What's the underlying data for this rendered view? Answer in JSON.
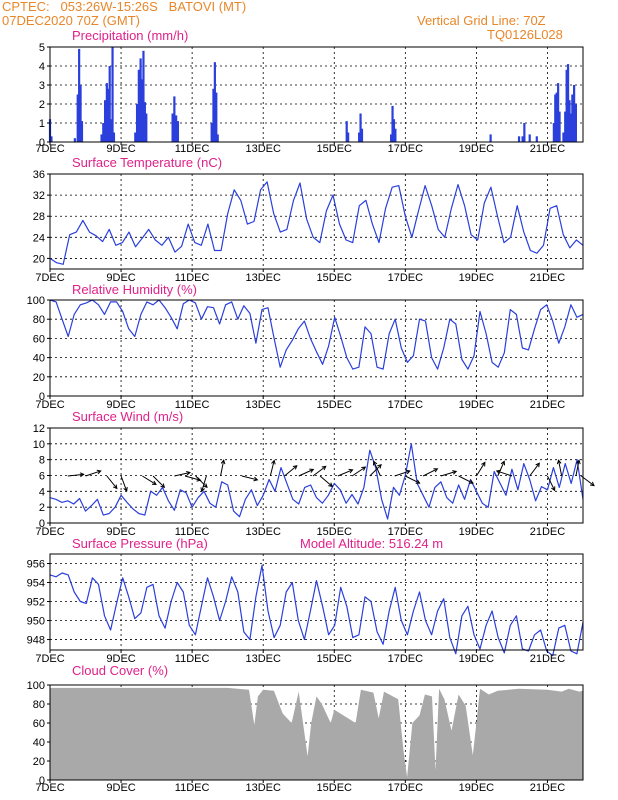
{
  "header": {
    "line1_left": "CPTEC:   053:26W-15:26S   BATOVI (MT)",
    "line2_left": "07DEC2020 70Z (GMT)",
    "line1_right": "Vertical Grid Line: 70Z",
    "line2_right": "TQ0126L028"
  },
  "colors": {
    "header": "#e8872a",
    "title": "#e0218a",
    "line": "#2a3fdc",
    "cloud": "#a9a9a9",
    "arrow": "#000000"
  },
  "x_axis": {
    "ticks": [
      "7DEC",
      "9DEC",
      "11DEC",
      "13DEC",
      "15DEC",
      "17DEC",
      "19DEC",
      "21DEC"
    ],
    "range_days": [
      0,
      15
    ],
    "tick_days": [
      0,
      2,
      4,
      6,
      8,
      10,
      12,
      14
    ]
  },
  "chart_data": [
    {
      "id": "precip",
      "type": "bar",
      "title": "Precipitation (mm/h)",
      "ylim": [
        0,
        5
      ],
      "yticks": [
        0,
        1,
        2,
        3,
        4,
        5
      ],
      "series": [
        {
          "day": 0.0,
          "value": 1.2
        },
        {
          "day": 0.04,
          "value": 0.3
        },
        {
          "day": 0.7,
          "value": 0.2
        },
        {
          "day": 0.78,
          "value": 2.5
        },
        {
          "day": 0.82,
          "value": 4.9
        },
        {
          "day": 0.86,
          "value": 3.0
        },
        {
          "day": 0.9,
          "value": 1.1
        },
        {
          "day": 1.45,
          "value": 0.4
        },
        {
          "day": 1.5,
          "value": 1.0
        },
        {
          "day": 1.55,
          "value": 2.2
        },
        {
          "day": 1.6,
          "value": 3.1
        },
        {
          "day": 1.64,
          "value": 2.8
        },
        {
          "day": 1.68,
          "value": 4.0
        },
        {
          "day": 1.72,
          "value": 1.2
        },
        {
          "day": 1.76,
          "value": 5.0
        },
        {
          "day": 1.8,
          "value": 0.5
        },
        {
          "day": 2.4,
          "value": 0.5
        },
        {
          "day": 2.45,
          "value": 2.0
        },
        {
          "day": 2.5,
          "value": 3.8
        },
        {
          "day": 2.55,
          "value": 4.4
        },
        {
          "day": 2.6,
          "value": 3.3
        },
        {
          "day": 2.63,
          "value": 4.8
        },
        {
          "day": 2.67,
          "value": 2.1
        },
        {
          "day": 2.71,
          "value": 1.5
        },
        {
          "day": 3.45,
          "value": 1.5
        },
        {
          "day": 3.5,
          "value": 2.4
        },
        {
          "day": 3.55,
          "value": 1.4
        },
        {
          "day": 3.6,
          "value": 1.1
        },
        {
          "day": 4.55,
          "value": 1.0
        },
        {
          "day": 4.6,
          "value": 2.8
        },
        {
          "day": 4.64,
          "value": 4.2
        },
        {
          "day": 4.68,
          "value": 2.6
        },
        {
          "day": 4.72,
          "value": 0.4
        },
        {
          "day": 8.35,
          "value": 1.1
        },
        {
          "day": 8.39,
          "value": 0.5
        },
        {
          "day": 8.7,
          "value": 0.5
        },
        {
          "day": 8.74,
          "value": 1.5
        },
        {
          "day": 8.78,
          "value": 0.7
        },
        {
          "day": 9.6,
          "value": 0.4
        },
        {
          "day": 9.64,
          "value": 1.9
        },
        {
          "day": 9.68,
          "value": 1.2
        },
        {
          "day": 9.72,
          "value": 0.7
        },
        {
          "day": 12.4,
          "value": 0.4
        },
        {
          "day": 13.2,
          "value": 0.3
        },
        {
          "day": 13.3,
          "value": 0.3
        },
        {
          "day": 13.35,
          "value": 1.0
        },
        {
          "day": 13.5,
          "value": 0.4
        },
        {
          "day": 13.7,
          "value": 0.3
        },
        {
          "day": 14.18,
          "value": 1.0
        },
        {
          "day": 14.22,
          "value": 2.5
        },
        {
          "day": 14.26,
          "value": 2.6
        },
        {
          "day": 14.3,
          "value": 3.1
        },
        {
          "day": 14.34,
          "value": 1.6
        },
        {
          "day": 14.45,
          "value": 0.5
        },
        {
          "day": 14.5,
          "value": 1.6
        },
        {
          "day": 14.54,
          "value": 3.8
        },
        {
          "day": 14.58,
          "value": 4.1
        },
        {
          "day": 14.62,
          "value": 2.2
        },
        {
          "day": 14.66,
          "value": 1.5
        },
        {
          "day": 14.7,
          "value": 2.5
        },
        {
          "day": 14.75,
          "value": 3.0
        },
        {
          "day": 14.8,
          "value": 2.0
        }
      ]
    },
    {
      "id": "temp",
      "type": "line",
      "title": "Surface Temperature (nC)",
      "ylim": [
        18,
        36
      ],
      "yticks": [
        20,
        24,
        28,
        32,
        36
      ],
      "base": [
        20.0,
        19.2,
        18.9,
        24.5,
        25.0,
        27.2,
        25.0,
        24.3,
        23.2,
        25.5,
        22.5,
        23.0,
        25.0,
        22.2,
        23.8,
        25.5,
        23.5,
        22.5,
        24.0,
        21.2,
        22.3,
        26.5,
        23.0,
        22.5,
        26.5,
        21.5,
        21.5,
        28.5,
        33.0,
        31.0,
        26.5,
        27.0,
        33.0,
        34.5,
        28.5,
        25.0,
        25.5,
        31.0,
        34.3,
        27.5,
        24.0,
        23.0,
        29.0,
        32.0,
        26.5,
        23.5,
        23.0,
        30.0,
        31.0,
        26.5,
        23.0,
        29.5,
        33.5,
        33.8,
        28.0,
        24.0,
        29.0,
        33.8,
        30.0,
        25.5,
        24.0,
        29.5,
        34.0,
        30.0,
        24.5,
        23.5,
        30.5,
        33.5,
        28.0,
        23.0,
        24.0,
        30.0,
        25.0,
        21.5,
        21.0,
        22.5,
        29.5,
        30.0,
        24.5,
        22.0,
        23.5,
        22.5
      ],
      "label_points": []
    },
    {
      "id": "rh",
      "type": "line",
      "title": "Relative Humidity (%)",
      "ylim": [
        0,
        100
      ],
      "yticks": [
        0,
        20,
        40,
        60,
        80,
        100
      ],
      "base": [
        100,
        98,
        80,
        62,
        85,
        95,
        97,
        100,
        95,
        85,
        98,
        98,
        88,
        70,
        62,
        85,
        98,
        95,
        100,
        92,
        82,
        70,
        96,
        100,
        97,
        80,
        93,
        92,
        75,
        95,
        98,
        80,
        94,
        86,
        55,
        90,
        92,
        60,
        30,
        48,
        58,
        70,
        78,
        60,
        46,
        33,
        52,
        82,
        62,
        40,
        28,
        30,
        72,
        65,
        30,
        28,
        65,
        80,
        50,
        35,
        42,
        80,
        78,
        40,
        28,
        50,
        80,
        75,
        38,
        28,
        42,
        88,
        65,
        35,
        30,
        45,
        90,
        85,
        50,
        48,
        70,
        90,
        95,
        78,
        55,
        72,
        95,
        82,
        85
      ]
    },
    {
      "id": "wind",
      "type": "line",
      "title": "Surface Wind (m/s)",
      "ylim": [
        0,
        12
      ],
      "yticks": [
        0,
        2,
        4,
        6,
        8,
        10,
        12
      ],
      "base": [
        3.2,
        3.0,
        2.6,
        2.8,
        2.4,
        3.1,
        1.5,
        2.2,
        3.0,
        1.0,
        1.2,
        2.0,
        3.5,
        2.6,
        1.8,
        1.2,
        1.0,
        4.0,
        3.5,
        4.5,
        2.8,
        1.6,
        4.2,
        3.8,
        2.0,
        3.2,
        4.0,
        2.5,
        2.0,
        5.2,
        4.8,
        1.5,
        0.8,
        3.0,
        4.2,
        2.2,
        3.5,
        5.5,
        4.0,
        7.0,
        5.0,
        3.0,
        2.4,
        4.5,
        4.8,
        3.2,
        2.5,
        3.5,
        5.0,
        4.2,
        2.5,
        3.6,
        2.4,
        4.5,
        9.2,
        7.0,
        3.0,
        0.5,
        4.5,
        3.5,
        6.0,
        10.0,
        5.0,
        3.5,
        2.0,
        4.5,
        5.2,
        3.2,
        2.5,
        4.8,
        3.0,
        5.5,
        4.0,
        2.5,
        2.0,
        6.5,
        5.0,
        3.5,
        6.8,
        4.2,
        7.5,
        5.5,
        2.8,
        4.6,
        4.2,
        7.0,
        4.5,
        7.5,
        5.0,
        8.0,
        3.0
      ],
      "arrows": [
        {
          "day": 0.5,
          "u": 1,
          "v": 0.1
        },
        {
          "day": 1.0,
          "u": 0.9,
          "v": 0.3
        },
        {
          "day": 1.6,
          "u": 0.4,
          "v": -0.5
        },
        {
          "day": 2.0,
          "u": 0.3,
          "v": -0.8
        },
        {
          "day": 2.6,
          "u": 0.8,
          "v": -0.5
        },
        {
          "day": 2.9,
          "u": 0.6,
          "v": -0.6
        },
        {
          "day": 3.5,
          "u": 0.9,
          "v": 0.2
        },
        {
          "day": 3.8,
          "u": 1.1,
          "v": -0.3
        },
        {
          "day": 4.1,
          "u": 0.9,
          "v": -0.9
        },
        {
          "day": 4.4,
          "u": -0.3,
          "v": -1.0
        },
        {
          "day": 4.8,
          "u": 0.2,
          "v": 1.0
        },
        {
          "day": 5.4,
          "u": 1.2,
          "v": -0.3
        },
        {
          "day": 6.2,
          "u": 0.2,
          "v": 0.8
        },
        {
          "day": 6.6,
          "u": 0.6,
          "v": 0.5
        },
        {
          "day": 7.0,
          "u": 1.1,
          "v": 0.5
        },
        {
          "day": 7.4,
          "u": 0.8,
          "v": 0.6
        },
        {
          "day": 7.6,
          "u": 0.7,
          "v": -0.6
        },
        {
          "day": 8.1,
          "u": 1.2,
          "v": 0.5
        },
        {
          "day": 8.5,
          "u": 1.2,
          "v": 0.8
        },
        {
          "day": 9.0,
          "u": 1.0,
          "v": 1.0
        },
        {
          "day": 9.3,
          "u": -0.6,
          "v": 1.3
        },
        {
          "day": 9.7,
          "u": 1.2,
          "v": 0.4
        },
        {
          "day": 10.0,
          "u": 1.0,
          "v": -0.5
        },
        {
          "day": 10.5,
          "u": 1.0,
          "v": 0.5
        },
        {
          "day": 11.0,
          "u": 1.0,
          "v": 0.3
        },
        {
          "day": 11.5,
          "u": 0.8,
          "v": -0.4
        },
        {
          "day": 12.0,
          "u": 0.5,
          "v": 0.8
        },
        {
          "day": 12.6,
          "u": 0.4,
          "v": 0.9
        },
        {
          "day": 13.0,
          "u": -0.6,
          "v": 0.2
        },
        {
          "day": 13.5,
          "u": 0.3,
          "v": 0.4
        },
        {
          "day": 14.0,
          "u": 0.3,
          "v": -0.6
        },
        {
          "day": 14.4,
          "u": -0.2,
          "v": 1.0
        },
        {
          "day": 14.8,
          "u": 0.2,
          "v": 1.0
        },
        {
          "day": 14.95,
          "u": 0.4,
          "v": -0.3
        }
      ]
    },
    {
      "id": "pres",
      "type": "line",
      "title": "Surface Pressure (hPa)",
      "extra_label": "Model Altitude: 516.24 m",
      "ylim": [
        946.9,
        957
      ],
      "yticks": [
        948,
        950,
        952,
        954,
        956
      ],
      "base": [
        954.8,
        954.6,
        955.0,
        954.8,
        953.0,
        952.0,
        951.8,
        954.5,
        953.8,
        950.5,
        949.0,
        951.8,
        954.5,
        952.5,
        950.2,
        950.8,
        953.5,
        953.8,
        950.5,
        949.2,
        952.0,
        954.0,
        953.0,
        949.5,
        948.5,
        951.5,
        954.5,
        952.5,
        950.0,
        952.0,
        954.6,
        953.0,
        948.8,
        948.0,
        952.5,
        955.8,
        951.0,
        948.2,
        949.5,
        953.0,
        954.0,
        950.0,
        948.0,
        951.0,
        954.2,
        951.5,
        948.5,
        949.5,
        953.5,
        951.5,
        948.2,
        948.5,
        952.5,
        952.0,
        948.8,
        947.5,
        951.0,
        953.5,
        950.0,
        948.5,
        951.0,
        953.0,
        950.0,
        948.5,
        951.0,
        952.3,
        948.2,
        946.5,
        950.5,
        951.5,
        948.5,
        947.0,
        949.5,
        951.0,
        948.2,
        946.6,
        949.5,
        950.5,
        947.0,
        946.8,
        948.5,
        949.0,
        946.8,
        946.3,
        949.2,
        949.5,
        946.8,
        946.5,
        949.8
      ]
    },
    {
      "id": "cloud",
      "type": "area",
      "title": "Cloud Cover (%)",
      "ylim": [
        0,
        100
      ],
      "yticks": [
        0,
        20,
        40,
        60,
        80,
        100
      ],
      "dips": [
        {
          "day": 5.0,
          "value": 97
        },
        {
          "day": 5.6,
          "value": 95
        },
        {
          "day": 5.75,
          "value": 58
        },
        {
          "day": 5.85,
          "value": 88
        },
        {
          "day": 6.0,
          "value": 95
        },
        {
          "day": 6.3,
          "value": 94
        },
        {
          "day": 6.55,
          "value": 70
        },
        {
          "day": 6.8,
          "value": 60
        },
        {
          "day": 7.0,
          "value": 93
        },
        {
          "day": 7.25,
          "value": 25
        },
        {
          "day": 7.35,
          "value": 60
        },
        {
          "day": 7.5,
          "value": 88
        },
        {
          "day": 7.65,
          "value": 80
        },
        {
          "day": 7.9,
          "value": 60
        },
        {
          "day": 8.0,
          "value": 74
        },
        {
          "day": 8.6,
          "value": 60
        },
        {
          "day": 8.75,
          "value": 95
        },
        {
          "day": 9.1,
          "value": 92
        },
        {
          "day": 9.25,
          "value": 65
        },
        {
          "day": 9.4,
          "value": 93
        },
        {
          "day": 9.8,
          "value": 85
        },
        {
          "day": 9.95,
          "value": 30
        },
        {
          "day": 10.05,
          "value": 3
        },
        {
          "day": 10.2,
          "value": 60
        },
        {
          "day": 10.4,
          "value": 68
        },
        {
          "day": 10.55,
          "value": 90
        },
        {
          "day": 10.75,
          "value": 88
        },
        {
          "day": 10.85,
          "value": 10
        },
        {
          "day": 10.95,
          "value": 96
        },
        {
          "day": 11.1,
          "value": 85
        },
        {
          "day": 11.3,
          "value": 52
        },
        {
          "day": 11.5,
          "value": 90
        },
        {
          "day": 11.7,
          "value": 78
        },
        {
          "day": 11.9,
          "value": 26
        },
        {
          "day": 12.0,
          "value": 60
        },
        {
          "day": 12.1,
          "value": 96
        },
        {
          "day": 12.35,
          "value": 90
        },
        {
          "day": 12.6,
          "value": 94
        },
        {
          "day": 13.2,
          "value": 96
        },
        {
          "day": 14.0,
          "value": 95
        },
        {
          "day": 14.4,
          "value": 93
        },
        {
          "day": 14.6,
          "value": 96
        },
        {
          "day": 14.9,
          "value": 93
        }
      ]
    }
  ]
}
